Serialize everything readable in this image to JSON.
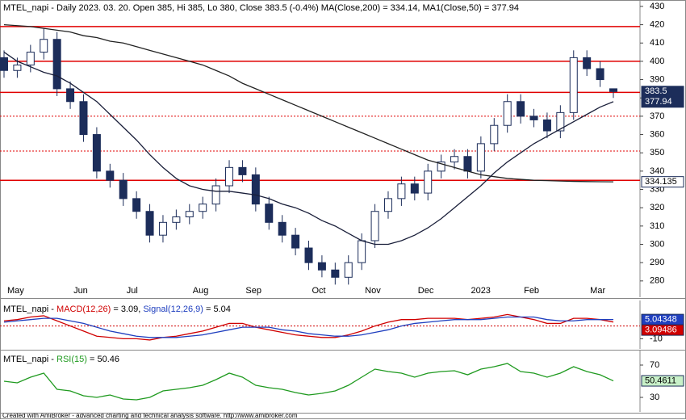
{
  "chart_data": [
    {
      "type": "candlestick",
      "title": "MTEL_napi - Daily 2023. 03. 20. Open 385, Hi 385, Lo 380, Close 383.5 (-0.4%) MA(Close,200) = 334.14, MA1(Close,50) = 377.94",
      "categories": [
        "May",
        null,
        null,
        null,
        null,
        "Jun",
        null,
        null,
        null,
        "Jul",
        null,
        null,
        null,
        null,
        "Aug",
        null,
        null,
        null,
        "Sep",
        null,
        null,
        null,
        null,
        "Oct",
        null,
        null,
        null,
        "Nov",
        null,
        null,
        null,
        "Dec",
        null,
        null,
        null,
        "2023",
        null,
        null,
        null,
        "Feb",
        null,
        null,
        null,
        null,
        "Mar",
        null,
        null
      ],
      "open": [
        402,
        395,
        398,
        405,
        412,
        385,
        378,
        360,
        340,
        335,
        325,
        318,
        305,
        312,
        315,
        318,
        322,
        332,
        342,
        338,
        322,
        312,
        305,
        298,
        290,
        286,
        282,
        290,
        302,
        318,
        325,
        333,
        328,
        340,
        345,
        348,
        340,
        355,
        365,
        378,
        370,
        368,
        362,
        372,
        402,
        396,
        385
      ],
      "high": [
        406,
        402,
        409,
        418,
        416,
        389,
        382,
        364,
        344,
        339,
        329,
        322,
        316,
        319,
        322,
        326,
        336,
        346,
        346,
        342,
        326,
        316,
        309,
        302,
        294,
        290,
        294,
        306,
        322,
        329,
        337,
        337,
        344,
        349,
        352,
        352,
        359,
        369,
        382,
        382,
        374,
        372,
        376,
        406,
        406,
        400,
        385
      ],
      "low": [
        391,
        391,
        394,
        401,
        381,
        374,
        356,
        336,
        331,
        321,
        314,
        301,
        301,
        308,
        311,
        314,
        318,
        328,
        334,
        318,
        308,
        301,
        294,
        286,
        282,
        278,
        278,
        286,
        298,
        314,
        321,
        324,
        324,
        336,
        341,
        336,
        336,
        351,
        361,
        366,
        364,
        358,
        358,
        368,
        392,
        386,
        380
      ],
      "close": [
        395,
        398,
        405,
        412,
        385,
        378,
        360,
        340,
        335,
        325,
        318,
        305,
        312,
        315,
        318,
        322,
        332,
        342,
        338,
        322,
        312,
        305,
        298,
        290,
        286,
        282,
        290,
        302,
        318,
        325,
        333,
        328,
        340,
        345,
        348,
        340,
        355,
        365,
        378,
        370,
        368,
        362,
        372,
        402,
        396,
        390,
        383.5
      ],
      "up_color": "#ffffff",
      "down_color": "#1c2d5a",
      "outline_color": "#1c2d5a",
      "close_label_fill": "#1c2d5a",
      "series": [
        {
          "color": "#222222",
          "label_fill": "#ffffff",
          "label_text": "#000000",
          "values": [
            420,
            419.5,
            419,
            418,
            417,
            416,
            414,
            413,
            411,
            410,
            408,
            406,
            404,
            402,
            400,
            398,
            395,
            392,
            388,
            385,
            382,
            379,
            376,
            373,
            370,
            367,
            364,
            361,
            358,
            355,
            352,
            349,
            346,
            344,
            342,
            340,
            338,
            337,
            336,
            335.5,
            335,
            334.8,
            334.6,
            334.4,
            334.3,
            334.2,
            334.135
          ]
        },
        {
          "color": "#1a1f3a",
          "label_fill": "#1c2d5a",
          "label_text": "#ffffff",
          "values": [
            405,
            400,
            397,
            394,
            392,
            388,
            383,
            378,
            371,
            364,
            357,
            349,
            342,
            336,
            332,
            330,
            329,
            329,
            328,
            327,
            325,
            322,
            320,
            317,
            313,
            310,
            306,
            302,
            300,
            300,
            302,
            305,
            309,
            314,
            320,
            326,
            332,
            339,
            345,
            350,
            355,
            359,
            363,
            367,
            371,
            375,
            377.94
          ]
        }
      ],
      "levels": [
        {
          "value": 419,
          "style": "solid"
        },
        {
          "value": 400,
          "style": "solid"
        },
        {
          "value": 383,
          "style": "solid"
        },
        {
          "value": 370,
          "style": "dotted"
        },
        {
          "value": 351,
          "style": "dotted"
        },
        {
          "value": 335,
          "style": "solid"
        }
      ],
      "level_color": "#e00000",
      "ylim": [
        271.1,
        433.5
      ],
      "yticks": [
        280,
        290,
        300,
        310,
        320,
        330,
        340,
        350,
        360,
        370,
        380,
        390,
        400,
        410,
        420,
        430
      ]
    },
    {
      "type": "line",
      "title": [
        {
          "text": "MTEL_napi - ",
          "color": "#000000"
        },
        {
          "text": "MACD(12,26)",
          "color": "#d00000"
        },
        {
          "text": " = 3.09, ",
          "color": "#000000"
        },
        {
          "text": "Signal(12,26,9)",
          "color": "#1f3fbf"
        },
        {
          "text": " = 5.04",
          "color": "#000000"
        }
      ],
      "series": [
        {
          "color": "#d00000",
          "label_fill": "#d00000",
          "label_text": "#ffffff",
          "values": [
            4,
            5,
            7,
            8,
            4,
            0,
            -4,
            -8,
            -9,
            -10,
            -10,
            -11,
            -9,
            -8,
            -6,
            -4,
            -1,
            2,
            2,
            -1,
            -3,
            -5,
            -7,
            -8,
            -9,
            -9,
            -7,
            -4,
            0,
            3,
            5,
            5,
            6,
            6,
            6,
            5,
            6,
            7,
            9,
            7,
            5,
            2,
            2,
            6,
            6,
            5,
            3.09486
          ]
        },
        {
          "color": "#1f3fbf",
          "label_fill": "#1f3fbf",
          "label_text": "#ffffff",
          "values": [
            3,
            4,
            5,
            6,
            6,
            4,
            2,
            -1,
            -4,
            -6,
            -8,
            -9,
            -9,
            -9,
            -8,
            -7,
            -5,
            -3,
            -1,
            -1,
            -1,
            -3,
            -4,
            -6,
            -7,
            -8,
            -8,
            -7,
            -5,
            -3,
            0,
            2,
            3,
            4,
            5,
            5,
            5,
            6,
            7,
            7,
            7,
            5,
            4,
            4,
            5,
            5,
            5.04348
          ]
        }
      ],
      "levels": [
        {
          "value": 0,
          "style": "dotted"
        }
      ],
      "level_color": "#d00000",
      "ylim": [
        -18,
        20
      ],
      "yticks": [
        -10
      ]
    },
    {
      "type": "line",
      "title": [
        {
          "text": "MTEL_napi - ",
          "color": "#000000"
        },
        {
          "text": "RSI(15)",
          "color": "#1f9a1f"
        },
        {
          "text": " = 50.46",
          "color": "#000000"
        }
      ],
      "series": [
        {
          "color": "#1f9a1f",
          "label_fill": "#c8f0c8",
          "label_text": "#000000",
          "values": [
            50,
            48,
            55,
            60,
            40,
            38,
            32,
            30,
            33,
            28,
            27,
            30,
            38,
            40,
            42,
            45,
            52,
            60,
            55,
            45,
            42,
            40,
            36,
            33,
            35,
            38,
            45,
            55,
            65,
            62,
            60,
            55,
            60,
            62,
            63,
            58,
            65,
            68,
            72,
            62,
            60,
            55,
            60,
            68,
            62,
            58,
            50.4611
          ]
        }
      ],
      "ylim": [
        12,
        88
      ],
      "yticks": [
        30,
        70
      ]
    }
  ],
  "footer": "Created with AmiBroker - advanced charting and technical analysis software. http://www.amibroker.com"
}
